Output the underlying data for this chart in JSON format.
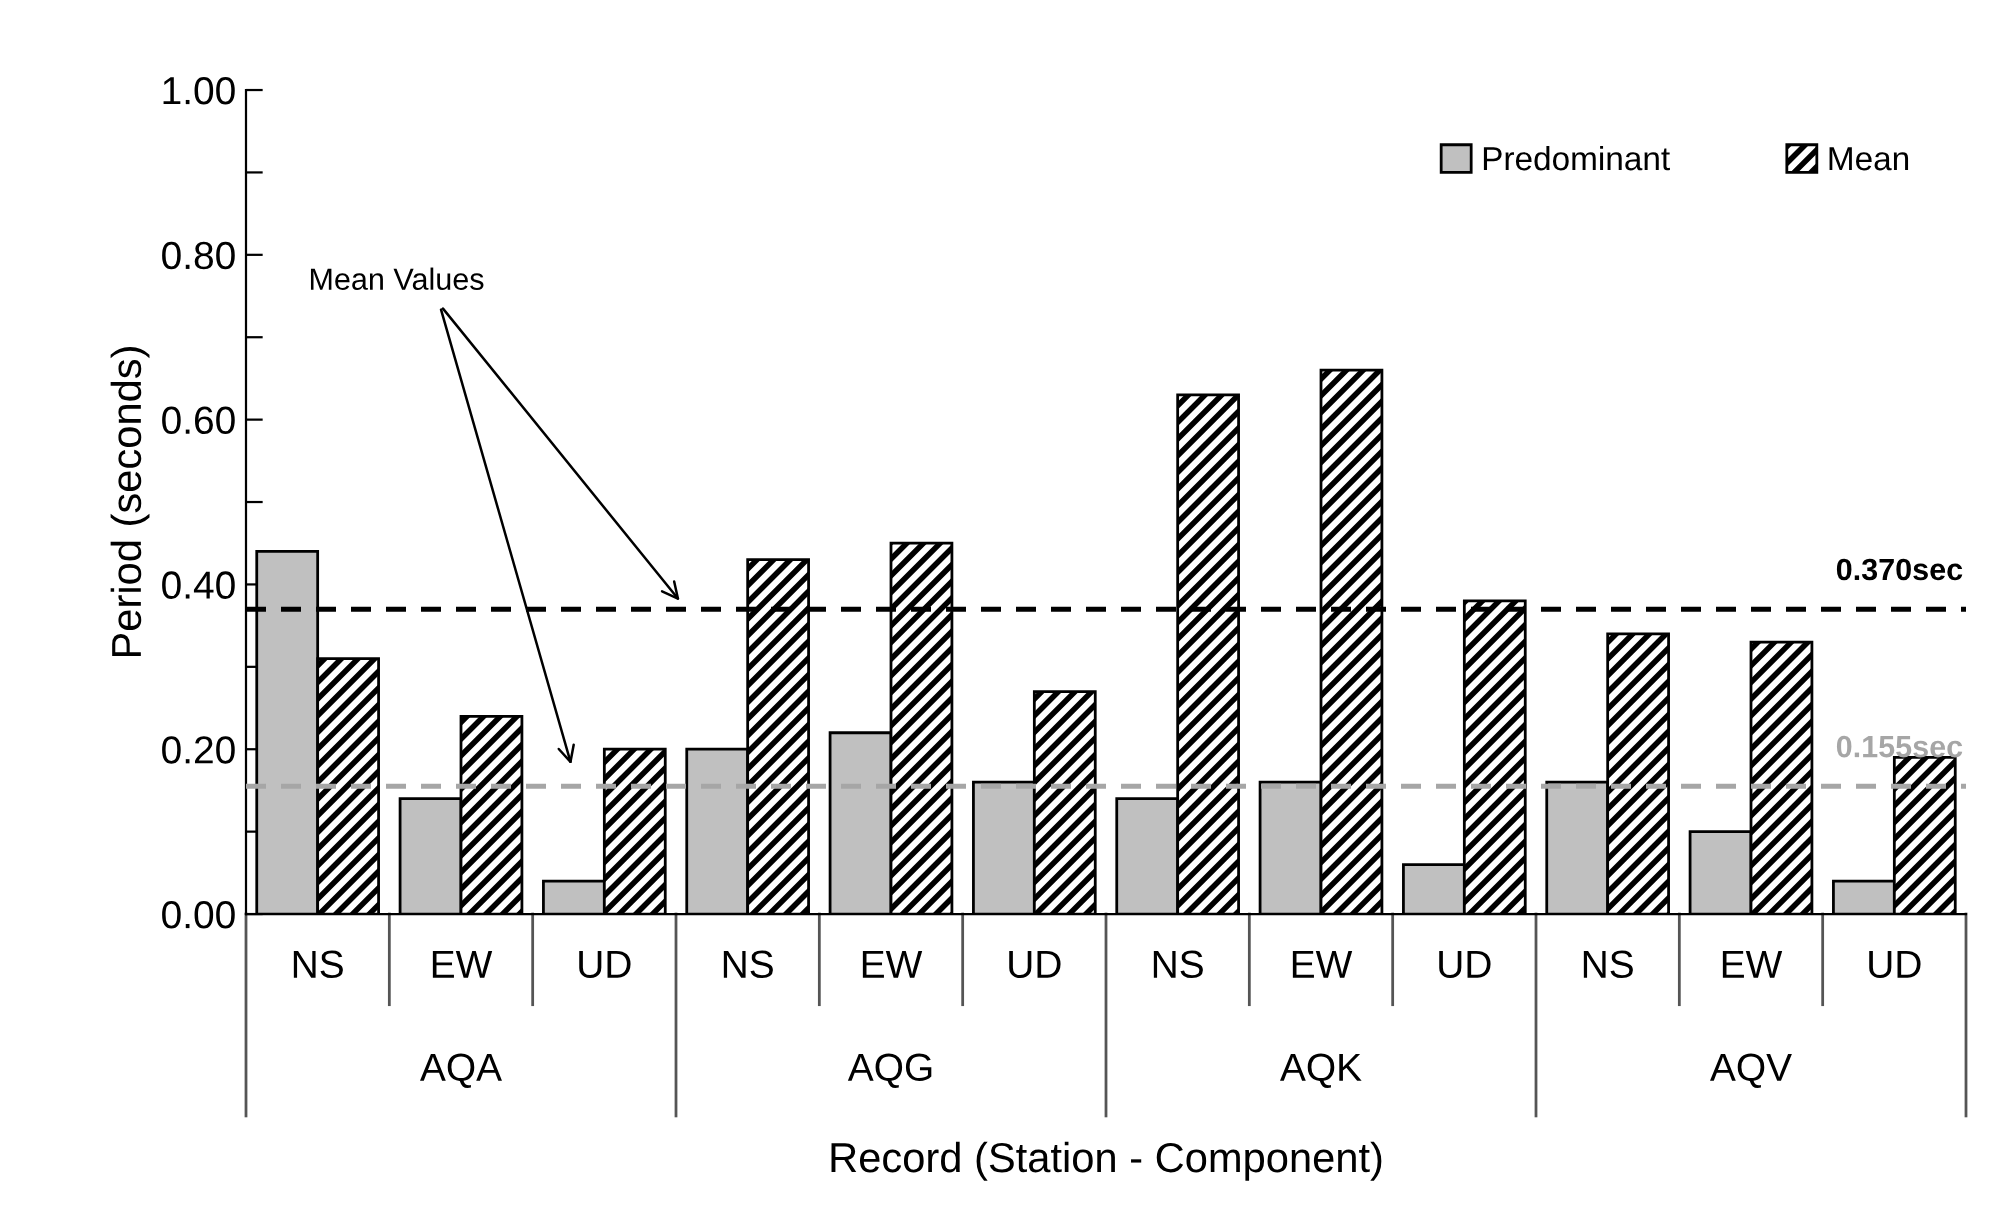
{
  "chart_data": {
    "type": "bar",
    "xlabel": "Record (Station - Component)",
    "ylabel": "Period (seconds)",
    "categories": [
      "NS",
      "EW",
      "UD",
      "NS",
      "EW",
      "UD",
      "NS",
      "EW",
      "UD",
      "NS",
      "EW",
      "UD"
    ],
    "series": [
      {
        "name": "Predominant",
        "color": "#c0c0c0",
        "values": [
          0.44,
          0.14,
          0.04,
          0.2,
          0.22,
          0.16,
          0.14,
          0.16,
          0.06,
          0.16,
          0.1,
          0.04
        ]
      },
      {
        "name": "Mean",
        "color": "#000000",
        "values": [
          0.31,
          0.24,
          0.2,
          0.43,
          0.45,
          0.27,
          0.63,
          0.66,
          0.38,
          0.34,
          0.33,
          0.19
        ]
      }
    ],
    "ylim": [
      0,
      1.0
    ],
    "yticks": [
      {
        "value": 0,
        "label": "0.00"
      },
      {
        "value": 0.1,
        "label": null
      },
      {
        "value": 0.2,
        "label": "0.20"
      },
      {
        "value": 0.3,
        "label": null
      },
      {
        "value": 0.4,
        "label": "0.40"
      },
      {
        "value": 0.5,
        "label": null
      },
      {
        "value": 0.6,
        "label": "0.60"
      },
      {
        "value": 0.7,
        "label": null
      },
      {
        "value": 0.8,
        "label": "0.80"
      },
      {
        "value": 0.9,
        "label": null
      },
      {
        "value": 1.0,
        "label": "1.00"
      }
    ],
    "ref_lines": [
      {
        "axis": "y",
        "value": 0.37,
        "label": "0.370sec",
        "color": "#000000",
        "line_style": "dashed"
      },
      {
        "axis": "y",
        "value": 0.155,
        "label": "0.155sec",
        "color": "#a6a6a6",
        "line_style": "dashed"
      }
    ],
    "annotations": [
      "Mean Values",
      "AQA",
      "AQG",
      "AQK",
      "AQV"
    ],
    "legend": "top right",
    "grid": false
  }
}
